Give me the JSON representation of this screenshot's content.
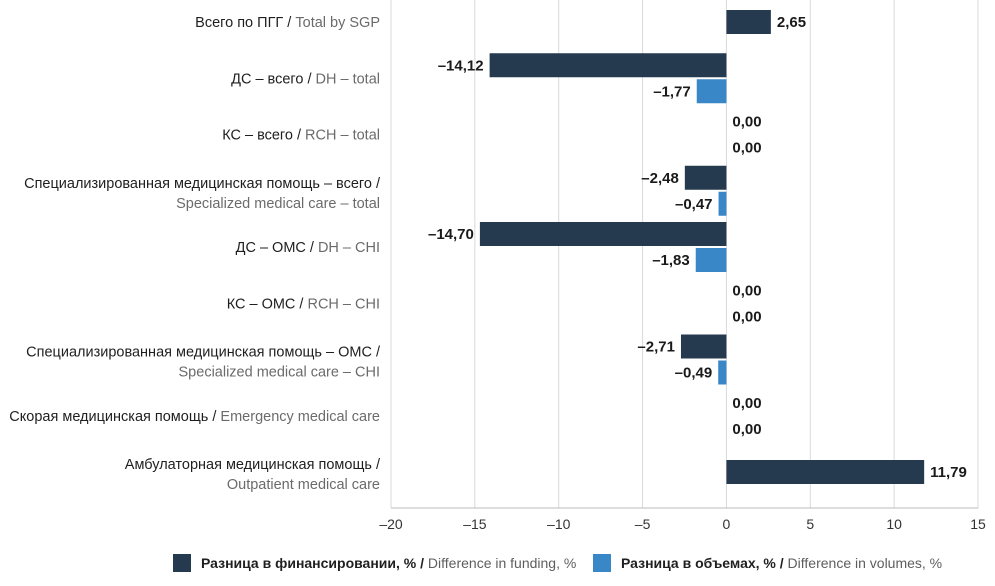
{
  "chart_data": {
    "type": "bar",
    "orientation": "horizontal",
    "categories": [
      {
        "ru": "Всего по ПГГ",
        "en": "Total by SGP"
      },
      {
        "ru": "ДС – всего",
        "en": "DH – total"
      },
      {
        "ru": "КС – всего",
        "en": "RCH – total"
      },
      {
        "ru": "Специализированная медицинская помощь – всего",
        "en": "Specialized medical care – total"
      },
      {
        "ru": "ДС – ОМС",
        "en": "DH – CHI"
      },
      {
        "ru": "КС – ОМС",
        "en": "RCH – CHI"
      },
      {
        "ru": "Специализированная медицинская помощь – ОМС",
        "en": "Specialized medical care – CHI"
      },
      {
        "ru": "Скорая медицинская помощь",
        "en": "Emergency medical care"
      },
      {
        "ru": "Амбулаторная медицинская помощь",
        "en": "Outpatient medical care"
      }
    ],
    "series": [
      {
        "name_ru": "Разница в финансировании, %",
        "name_en": "Difference in funding, %",
        "color": "#253a4f",
        "values": [
          2.65,
          -14.12,
          0.0,
          -2.48,
          -14.7,
          0.0,
          -2.71,
          0.0,
          11.79
        ],
        "labels": [
          "2,65",
          "–14,12",
          "0,00",
          "–2,48",
          "–14,70",
          "0,00",
          "–2,71",
          "0,00",
          "11,79"
        ]
      },
      {
        "name_ru": "Разница в объемах, %",
        "name_en": "Difference in volumes, %",
        "color": "#3a87c8",
        "values": [
          null,
          -1.77,
          0.0,
          -0.47,
          -1.83,
          0.0,
          -0.49,
          0.0,
          null
        ],
        "labels": [
          null,
          "–1,77",
          "0,00",
          "–0,47",
          "–1,83",
          "0,00",
          "–0,49",
          "0,00",
          null
        ]
      }
    ],
    "xlim": [
      -20,
      15
    ],
    "xticks": [
      -20,
      -15,
      -10,
      -5,
      0,
      5,
      10,
      15
    ],
    "xtick_labels": [
      "–20",
      "–15",
      "–10",
      "–5",
      "0",
      "5",
      "10",
      "15"
    ],
    "grid": "vertical",
    "legend_position": "bottom"
  },
  "legend": {
    "funding_ru": "Разница в финансировании, %",
    "funding_en": "Difference in funding, %",
    "volumes_ru": "Разница в объемах, %",
    "volumes_en": "Difference in volumes, %",
    "separator": " / "
  }
}
